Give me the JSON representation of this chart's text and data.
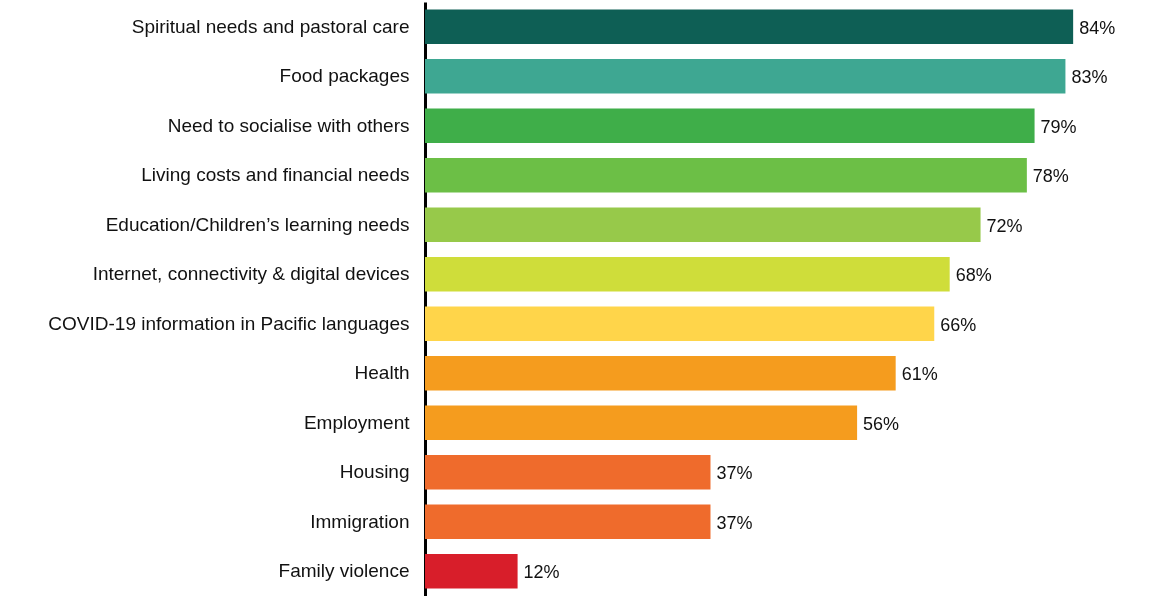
{
  "chart_data": {
    "type": "bar",
    "orientation": "horizontal",
    "categories": [
      "Spiritual needs and pastoral care",
      "Food packages",
      "Need to socialise with others",
      "Living costs and financial needs",
      "Education/Children’s learning needs",
      "Internet, connectivity & digital devices",
      "COVID-19 information in Pacific languages",
      "Health",
      "Employment",
      "Housing",
      "Immigration",
      "Family violence"
    ],
    "values": [
      84,
      83,
      79,
      78,
      72,
      68,
      66,
      61,
      56,
      37,
      37,
      12
    ],
    "value_labels": [
      "84%",
      "83%",
      "79%",
      "78%",
      "72%",
      "68%",
      "66%",
      "61%",
      "56%",
      "37%",
      "37%",
      "12%"
    ],
    "colors": [
      "#0e5f55",
      "#3ea792",
      "#3fae49",
      "#6cbf46",
      "#97c94a",
      "#cfdd3a",
      "#ffd54a",
      "#f59c1e",
      "#f59c1e",
      "#ef6b2c",
      "#ef6b2c",
      "#d81e2a"
    ]
  }
}
